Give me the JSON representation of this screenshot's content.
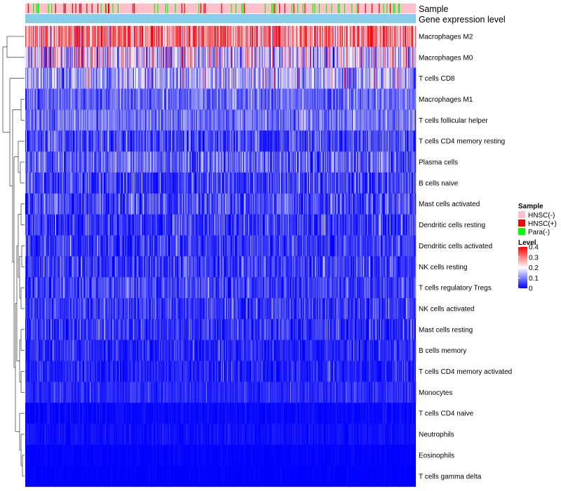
{
  "chart_data": {
    "type": "heatmap",
    "title": "",
    "annotation_tracks": [
      {
        "label": "Sample"
      },
      {
        "label": "Gene expression level"
      }
    ],
    "rows": [
      {
        "label": "Macrophages M2",
        "mean": 0.3,
        "spread": 0.09
      },
      {
        "label": "Macrophages M0",
        "mean": 0.17,
        "spread": 0.1
      },
      {
        "label": "T cells CD8",
        "mean": 0.13,
        "spread": 0.07
      },
      {
        "label": "Macrophages M1",
        "mean": 0.08,
        "spread": 0.04
      },
      {
        "label": "T cells follicular helper",
        "mean": 0.09,
        "spread": 0.04
      },
      {
        "label": "T cells CD4 memory resting",
        "mean": 0.05,
        "spread": 0.05
      },
      {
        "label": "Plasma cells",
        "mean": 0.07,
        "spread": 0.05
      },
      {
        "label": "B cells naive",
        "mean": 0.04,
        "spread": 0.05
      },
      {
        "label": "Mast cells activated",
        "mean": 0.05,
        "spread": 0.05
      },
      {
        "label": "Dendritic cells resting",
        "mean": 0.04,
        "spread": 0.04
      },
      {
        "label": "Dendritic cells activated",
        "mean": 0.04,
        "spread": 0.04
      },
      {
        "label": "NK cells resting",
        "mean": 0.04,
        "spread": 0.04
      },
      {
        "label": "T cells regulatory  Tregs",
        "mean": 0.05,
        "spread": 0.04
      },
      {
        "label": "NK cells activated",
        "mean": 0.04,
        "spread": 0.04
      },
      {
        "label": "Mast cells resting",
        "mean": 0.03,
        "spread": 0.04
      },
      {
        "label": "B cells memory",
        "mean": 0.025,
        "spread": 0.03
      },
      {
        "label": "T cells CD4 memory activated",
        "mean": 0.02,
        "spread": 0.03
      },
      {
        "label": "Monocytes",
        "mean": 0.03,
        "spread": 0.02
      },
      {
        "label": "T cells CD4 naive",
        "mean": 0.005,
        "spread": 0.01
      },
      {
        "label": "Neutrophils",
        "mean": 0.01,
        "spread": 0.012
      },
      {
        "label": "Eosinophils",
        "mean": 0.002,
        "spread": 0.004
      },
      {
        "label": "T cells gamma delta",
        "mean": 0.001,
        "spread": 0.003
      }
    ],
    "column_count": 600,
    "sample_groups": [
      {
        "name": "HNSC(-)",
        "color": "#FFC0CB",
        "proportion": 0.87
      },
      {
        "name": "HNSC(+)",
        "color": "#FF0000",
        "proportion": 0.06
      },
      {
        "name": "Para(-)",
        "color": "#00FF00",
        "proportion": 0.07
      }
    ],
    "expression_track_color": "#87CEEB",
    "legend_sample": {
      "title": "Sample",
      "entries": [
        "HNSC(-)",
        "HNSC(+)",
        "Para(-)"
      ]
    },
    "legend_level": {
      "title": "Level",
      "ticks": [
        "0.4",
        "0.3",
        "0.2",
        "0.1",
        "0"
      ],
      "tick_values": [
        0.4,
        0.3,
        0.2,
        0.1,
        0
      ]
    },
    "color_scale": {
      "min": 0,
      "mid": 0.2,
      "max": 0.4,
      "low": "#0000FF",
      "mid_color": "#FFFFFF",
      "high": "#FF0000"
    },
    "dendrogram": "rows"
  }
}
